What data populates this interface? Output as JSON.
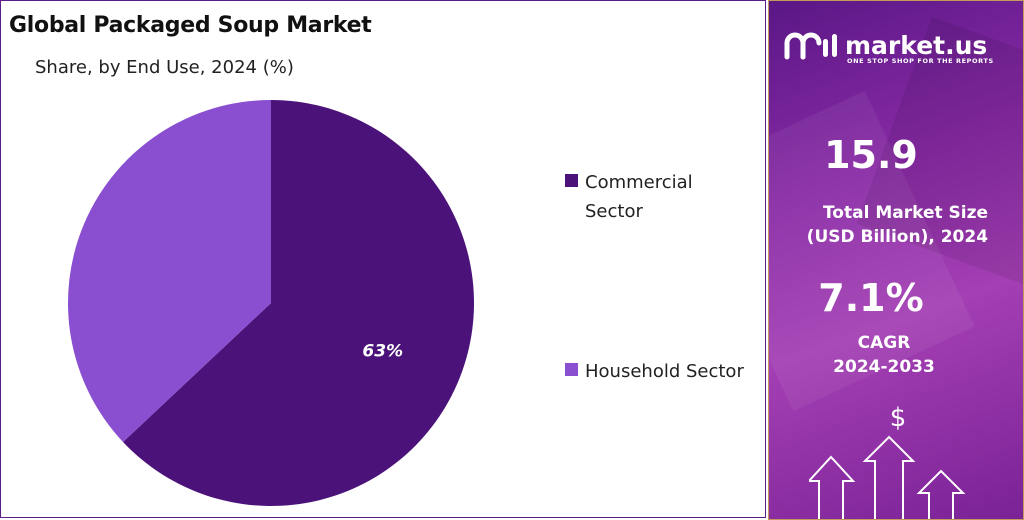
{
  "chart_data": {
    "type": "pie",
    "title": "Global Packaged Soup Market",
    "subtitle": "Share, by End Use, 2024 (%)",
    "slices": [
      {
        "label": "Commercial Sector",
        "value": 63,
        "data_label": "63%",
        "color": "#4b137a"
      },
      {
        "label": "Household Sector",
        "value": 37,
        "data_label": "",
        "color": "#8a4fd0"
      }
    ],
    "legend_position": "right"
  },
  "brand": {
    "name": "market.us",
    "tagline": "ONE STOP SHOP FOR THE REPORTS",
    "icon": "market-us-logo-icon"
  },
  "stats": {
    "market_size_value": "15.9",
    "market_size_label": "Total Market Size\n    (USD Billion), 2024",
    "cagr_value": "7.1%",
    "cagr_label": "CAGR\n2024-2033"
  },
  "colors": {
    "panel_gradient_start": "#5a1786",
    "panel_gradient_mid": "#a43fb4",
    "frame_border": "#5b1e86"
  }
}
